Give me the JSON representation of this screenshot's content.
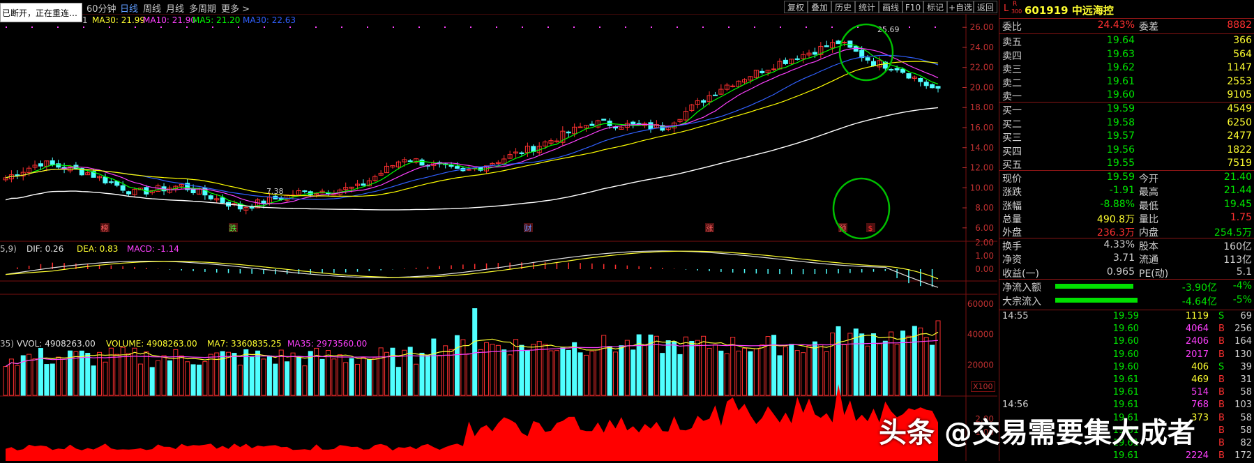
{
  "disconnect_notice": "已断开，正在重连…",
  "toolbar": {
    "periods": [
      "60分钟",
      "日线",
      "周线",
      "月线",
      "多周期",
      "更多 >"
    ],
    "active_period": "日线",
    "controls": [
      "复权",
      "叠加",
      "历史",
      "统计",
      "画线",
      "F10",
      "标记",
      "+自选",
      "返回"
    ]
  },
  "ma_legend": {
    "ma30": "MA30: 21.99",
    "ma10": "MA10: 21.90",
    "ma5": "MA5: 21.20",
    "ma30b": "MA30: 22.63",
    "prefix": "1"
  },
  "price_axis": [
    "26.00",
    "24.00",
    "22.00",
    "20.00",
    "18.00",
    "16.00",
    "14.00",
    "12.00",
    "10.00",
    "8.00",
    "6.00"
  ],
  "price_marks": {
    "high": "25.69",
    "low": "7.38"
  },
  "event_marks": [
    {
      "label": "榜",
      "color": "#ff6060"
    },
    {
      "label": "跌",
      "color": "#40ff40"
    },
    {
      "label": "财",
      "color": "#6090ff"
    },
    {
      "label": "涨",
      "color": "#ff6060"
    },
    {
      "label": "预",
      "color": "#ff6060"
    },
    {
      "label": "$",
      "color": "#ff3030"
    }
  ],
  "macd_legend": {
    "prefix": "5,9)",
    "dif": "DIF: 0.26",
    "dea": "DEA: 0.83",
    "macd": "MACD: -1.14"
  },
  "macd_axis": [
    "2.00",
    "1.00",
    "0.00"
  ],
  "vol_legend": {
    "prefix": "35)",
    "vvol": "VVOL: 4908263.00",
    "volume": "VOLUME: 4908263.00",
    "ma7": "MA7: 3360835.25",
    "ma35": "MA35: 2973560.00"
  },
  "vol_axis": [
    "60000",
    "40000",
    "20000"
  ],
  "vol_unit": "X100",
  "bottom_axis": [
    "2.00",
    "1.00"
  ],
  "stock": {
    "badge_l": "L",
    "badge_r": "R",
    "badge_num": "300",
    "code_name": "601919 中远海控"
  },
  "order_ratio": {
    "label": "委比",
    "value": "24.43%",
    "label2": "委差",
    "value2": "8882"
  },
  "asks": [
    {
      "label": "卖五",
      "price": "19.64",
      "vol": "366"
    },
    {
      "label": "卖四",
      "price": "19.63",
      "vol": "564"
    },
    {
      "label": "卖三",
      "price": "19.62",
      "vol": "1147"
    },
    {
      "label": "卖二",
      "price": "19.61",
      "vol": "2553"
    },
    {
      "label": "卖一",
      "price": "19.60",
      "vol": "9105"
    }
  ],
  "bids": [
    {
      "label": "买一",
      "price": "19.59",
      "vol": "4549"
    },
    {
      "label": "买二",
      "price": "19.58",
      "vol": "6250"
    },
    {
      "label": "买三",
      "price": "19.57",
      "vol": "2477"
    },
    {
      "label": "买四",
      "price": "19.56",
      "vol": "1822"
    },
    {
      "label": "买五",
      "price": "19.55",
      "vol": "7519"
    }
  ],
  "quote": [
    {
      "l1": "现价",
      "v1": "19.59",
      "c1": "g",
      "l2": "今开",
      "v2": "21.40",
      "c2": "g"
    },
    {
      "l1": "涨跌",
      "v1": "-1.91",
      "c1": "g",
      "l2": "最高",
      "v2": "21.44",
      "c2": "g"
    },
    {
      "l1": "涨幅",
      "v1": "-8.88%",
      "c1": "g",
      "l2": "最低",
      "v2": "19.45",
      "c2": "g"
    },
    {
      "l1": "总量",
      "v1": "490.8万",
      "c1": "y",
      "l2": "量比",
      "v2": "1.75",
      "c2": "r"
    },
    {
      "l1": "外盘",
      "v1": "236.3万",
      "c1": "r",
      "l2": "内盘",
      "v2": "254.5万",
      "c2": "g"
    }
  ],
  "fund": [
    {
      "l1": "换手",
      "v1": "4.33%",
      "l2": "股本",
      "v2": "160亿"
    },
    {
      "l1": "净资",
      "v1": "3.71",
      "l2": "流通",
      "v2": "113亿"
    },
    {
      "l1": "收益(一)",
      "v1": "0.965",
      "l2": "PE(动)",
      "v2": "5.1"
    }
  ],
  "flows": [
    {
      "label": "净流入额",
      "value": "-3.90亿",
      "pct": "-4%"
    },
    {
      "label": "大宗流入",
      "value": "-4.64亿",
      "pct": "-5%"
    }
  ],
  "ticks": [
    {
      "time": "14:55",
      "price": "19.59",
      "vol": "1119",
      "vcolor": "y",
      "side": "S",
      "n": "69"
    },
    {
      "time": "",
      "price": "19.60",
      "vol": "4064",
      "vcolor": "m",
      "side": "B",
      "n": "256"
    },
    {
      "time": "",
      "price": "19.60",
      "vol": "2406",
      "vcolor": "m",
      "side": "B",
      "n": "164"
    },
    {
      "time": "",
      "price": "19.60",
      "vol": "2017",
      "vcolor": "m",
      "side": "B",
      "n": "130"
    },
    {
      "time": "",
      "price": "19.60",
      "vol": "406",
      "vcolor": "y",
      "side": "S",
      "n": "39"
    },
    {
      "time": "",
      "price": "19.61",
      "vol": "469",
      "vcolor": "y",
      "side": "B",
      "n": "31"
    },
    {
      "time": "",
      "price": "19.61",
      "vol": "514",
      "vcolor": "m",
      "side": "B",
      "n": "58"
    },
    {
      "time": "14:56",
      "price": "19.61",
      "vol": "768",
      "vcolor": "m",
      "side": "B",
      "n": "103"
    },
    {
      "time": "",
      "price": "19.61",
      "vol": "373",
      "vcolor": "y",
      "side": "B",
      "n": "58"
    },
    {
      "time": "",
      "price": "19.61",
      "vol": "",
      "vcolor": "y",
      "side": "B",
      "n": "58"
    },
    {
      "time": "",
      "price": "19.61",
      "vol": "",
      "vcolor": "y",
      "side": "B",
      "n": "82"
    },
    {
      "time": "",
      "price": "19.61",
      "vol": "2224",
      "vcolor": "m",
      "side": "B",
      "n": "172"
    }
  ],
  "watermark": "头条 @交易需要集大成者",
  "colors": {
    "up": "#ff3030",
    "down": "#50ffff",
    "ma5": "#ffffff",
    "ma10": "#ffff00",
    "ma20": "#ff40ff",
    "ma60": "#00ff00",
    "circle": "#00c000"
  }
}
